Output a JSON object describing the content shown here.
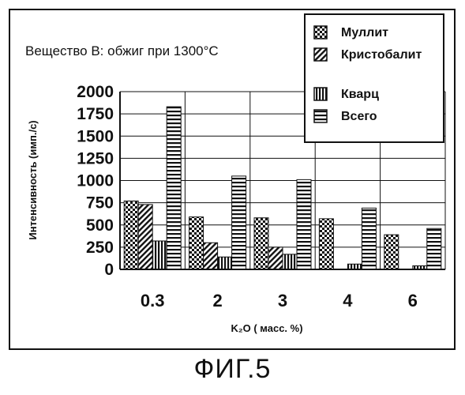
{
  "caption": "ФИГ.5",
  "chart_data": {
    "type": "bar",
    "title": "Вещество В: обжиг при 1300°С",
    "xlabel": "K₂O ( масс. %)",
    "ylabel": "Интенсивность (имп./с)",
    "categories": [
      "0.3",
      "2",
      "3",
      "4",
      "6"
    ],
    "ylim": [
      0,
      2000
    ],
    "yticks": [
      "0",
      "250",
      "500",
      "750",
      "1000",
      "1250",
      "1500",
      "1750",
      "2000"
    ],
    "grid": true,
    "legend_position": "top-right",
    "series": [
      {
        "name": "Муллит",
        "pattern": "checker",
        "values": [
          770,
          590,
          580,
          570,
          390
        ]
      },
      {
        "name": "Кристобалит",
        "pattern": "diagonal",
        "values": [
          730,
          300,
          250,
          0,
          0
        ]
      },
      {
        "name": "Кварц",
        "pattern": "vertical",
        "values": [
          320,
          140,
          170,
          60,
          40
        ]
      },
      {
        "name": "Всего",
        "pattern": "horizontal",
        "values": [
          1830,
          1050,
          1010,
          690,
          460
        ]
      }
    ]
  }
}
